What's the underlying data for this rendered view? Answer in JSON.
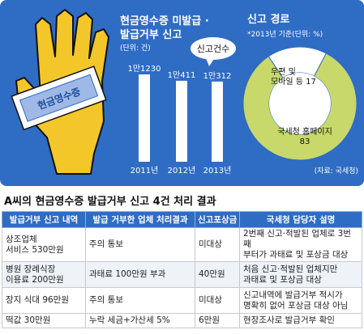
{
  "bars_panel": {
    "title_line1": "현금영수증 미발급 ·",
    "title_line2": "발급거부 신고",
    "unit": "(단위: 건)",
    "bubble": "신고건수",
    "badge": "현금영수증"
  },
  "pie_panel": {
    "title": "신고 경로",
    "subtitle": "*2013년 기준(단위: %)",
    "source": "(자료: 국세청)",
    "mobile_label": "우편 및\n모바일 등 17",
    "web_label": "국세청 홈페이지\n83"
  },
  "chart_data": [
    {
      "type": "bar",
      "categories": [
        "2011년",
        "2012년",
        "2013년"
      ],
      "values": [
        11230,
        10411,
        10312
      ],
      "value_labels": [
        "1만1230",
        "1만411",
        "1만312"
      ],
      "title": "현금영수증 미발급 · 발급거부 신고",
      "ylabel": "(단위: 건)"
    },
    {
      "type": "pie",
      "categories": [
        "우편 및 모바일 등",
        "국세청 홈페이지"
      ],
      "values": [
        17,
        83
      ],
      "title": "신고 경로",
      "subtitle": "*2013년 기준(단위: %)"
    }
  ],
  "colors": {
    "panel_blue": "#2f6cc4",
    "bar_white": "#ffffff",
    "donut_green": "#c8d86a",
    "hand_yellow": "#f3c72a",
    "table_header": "#2f6cc4"
  },
  "section_title": "A씨의 현금영수증 발급거부 신고 4건 처리 결과",
  "table": {
    "headers": [
      "발급거부 신고 내역",
      "발급 거부한 업체 처리결과",
      "신고포상금",
      "국세청 담당자 설명"
    ],
    "rows": [
      [
        "상조업체\n서비스 530만원",
        "주의 통보",
        "미대상",
        "2번째 신고·적발된 업체로 3번째\n부터가 과태료 및 포상금 대상"
      ],
      [
        "병원 장례식장\n이용료 200만원",
        "과태료 100만원 부과",
        "40만원",
        "처음 신고·적발된 업체지만\n과태료 및 포상금 대상"
      ],
      [
        "장지 식대 96만원",
        "주의 통보",
        "미대상",
        "신고내역에 발급거부 적시가\n명확히 없어 포상금 대상 아님"
      ],
      [
        "떡값 30만원",
        "누락 세금+가산세 5%",
        "6만원",
        "현장조사로 발급거부 확인"
      ]
    ]
  }
}
